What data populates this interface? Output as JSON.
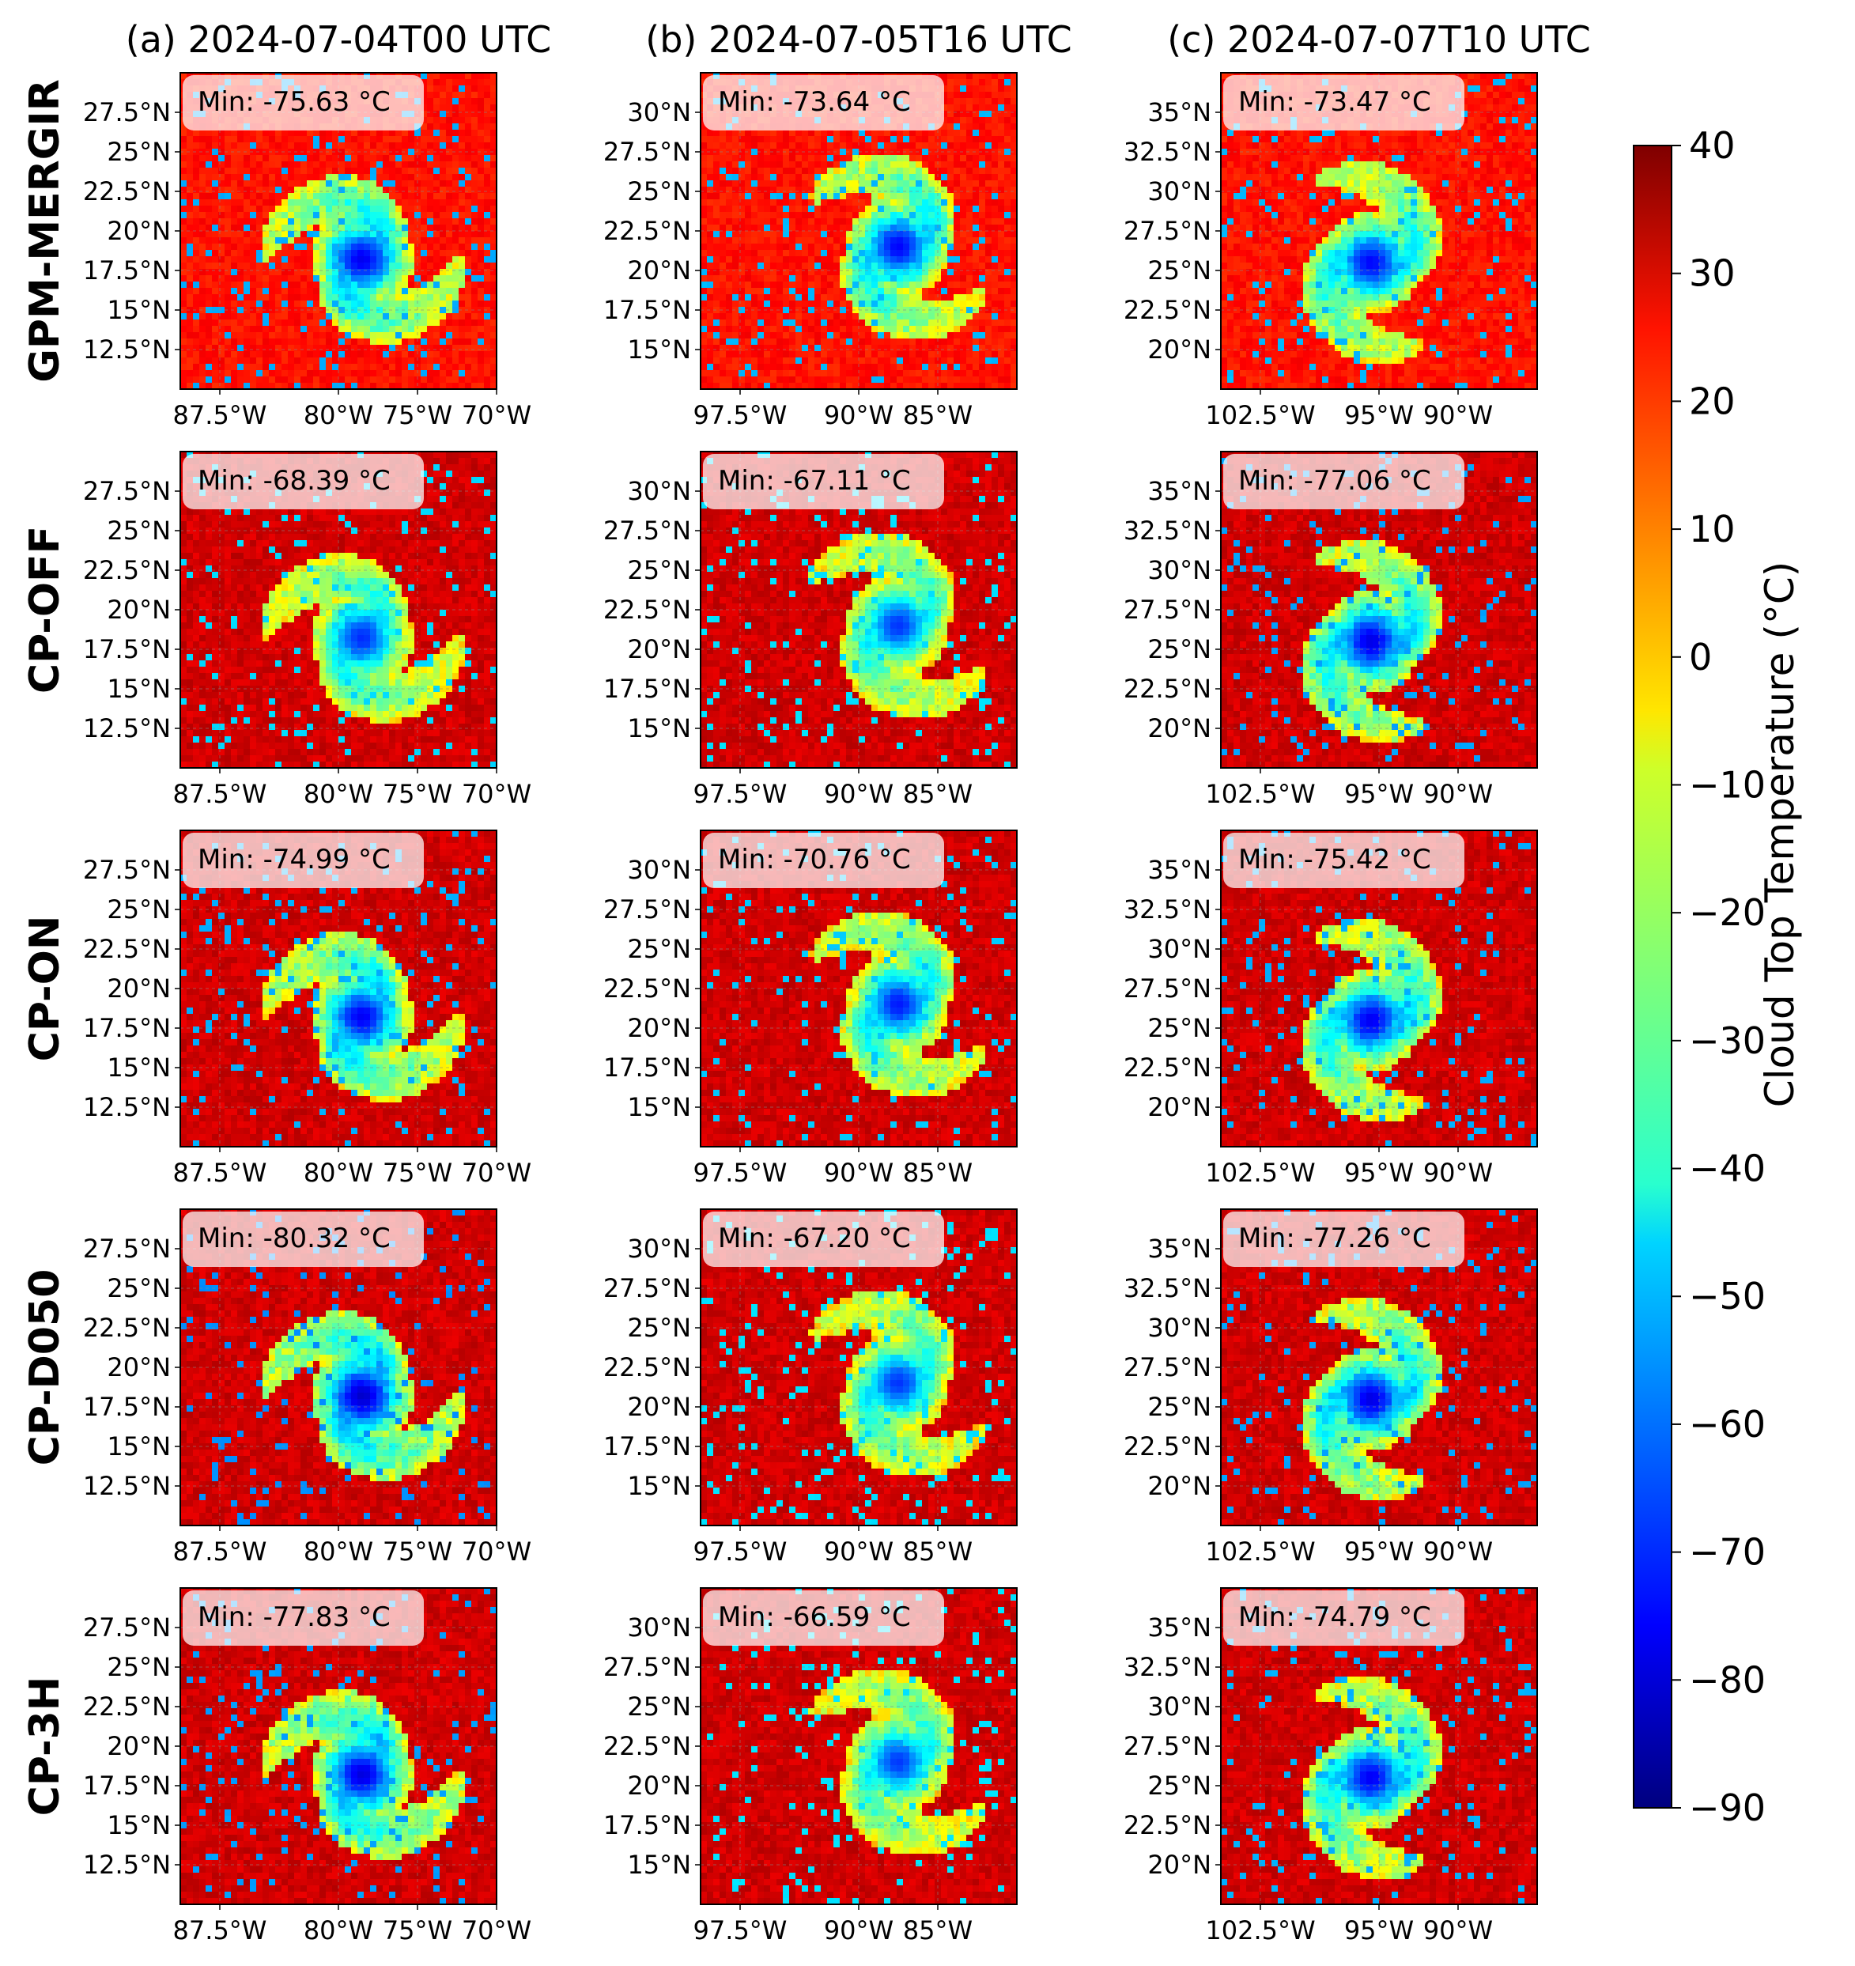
{
  "figure": {
    "columns": [
      {
        "title": "(a) 2024-07-04T00 UTC",
        "lat_ticks": [
          "27.5°N",
          "25°N",
          "22.5°N",
          "20°N",
          "17.5°N",
          "15°N",
          "12.5°N"
        ],
        "lat_values": [
          27.5,
          25,
          22.5,
          20,
          17.5,
          15,
          12.5
        ],
        "lat_range": [
          10,
          30
        ],
        "lon_ticks": [
          "87.5°W",
          "80°W",
          "75°W",
          "70°W"
        ],
        "lon_values": [
          -87.5,
          -80,
          -75,
          -70
        ],
        "lon_range": [
          -90,
          -70
        ],
        "eye_center": [
          -78.5,
          18.2
        ]
      },
      {
        "title": "(b) 2024-07-05T16 UTC",
        "lat_ticks": [
          "30°N",
          "27.5°N",
          "25°N",
          "22.5°N",
          "20°N",
          "17.5°N",
          "15°N"
        ],
        "lat_values": [
          30,
          27.5,
          25,
          22.5,
          20,
          17.5,
          15
        ],
        "lat_range": [
          12.5,
          32.5
        ],
        "lon_ticks": [
          "97.5°W",
          "90°W",
          "85°W"
        ],
        "lon_values": [
          -97.5,
          -90,
          -85
        ],
        "lon_range": [
          -100,
          -80
        ],
        "eye_center": [
          -87.5,
          21.5
        ]
      },
      {
        "title": "(c) 2024-07-07T10 UTC",
        "lat_ticks": [
          "35°N",
          "32.5°N",
          "30°N",
          "27.5°N",
          "25°N",
          "22.5°N",
          "20°N"
        ],
        "lat_values": [
          35,
          32.5,
          30,
          27.5,
          25,
          22.5,
          20
        ],
        "lat_range": [
          17.5,
          37.5
        ],
        "lon_ticks": [
          "102.5°W",
          "95°W",
          "90°W"
        ],
        "lon_values": [
          -102.5,
          -95,
          -90
        ],
        "lon_range": [
          -105,
          -85
        ],
        "eye_center": [
          -95.5,
          25.5
        ]
      }
    ],
    "rows": [
      {
        "label": "GPM-MERGIR",
        "mins": [
          "Min: -75.63 °C",
          "Min: -73.64 °C",
          "Min: -73.47 °C"
        ],
        "min_values": [
          -75.63,
          -73.64,
          -73.47
        ]
      },
      {
        "label": "CP-OFF",
        "mins": [
          "Min: -68.39 °C",
          "Min: -67.11 °C",
          "Min: -77.06 °C"
        ],
        "min_values": [
          -68.39,
          -67.11,
          -77.06
        ]
      },
      {
        "label": "CP-ON",
        "mins": [
          "Min: -74.99 °C",
          "Min: -70.76 °C",
          "Min: -75.42 °C"
        ],
        "min_values": [
          -74.99,
          -70.76,
          -75.42
        ]
      },
      {
        "label": "CP-D050",
        "mins": [
          "Min: -80.32 °C",
          "Min: -67.20 °C",
          "Min: -77.26 °C"
        ],
        "min_values": [
          -80.32,
          -67.2,
          -77.26
        ]
      },
      {
        "label": "CP-3H",
        "mins": [
          "Min: -77.83 °C",
          "Min: -66.59 °C",
          "Min: -74.79 °C"
        ],
        "min_values": [
          -77.83,
          -66.59,
          -74.79
        ]
      }
    ],
    "colorbar": {
      "label": "Cloud Top Temperature (°C)",
      "ticks": [
        "40",
        "30",
        "20",
        "10",
        "0",
        "−10",
        "−20",
        "−30",
        "−40",
        "−50",
        "−60",
        "−70",
        "−80",
        "−90"
      ],
      "tick_values": [
        40,
        30,
        20,
        10,
        0,
        -10,
        -20,
        -30,
        -40,
        -50,
        -60,
        -70,
        -80,
        -90
      ],
      "range": [
        -90,
        40
      ],
      "colormap": "jet"
    }
  },
  "chart_data": {
    "type": "heatmap",
    "variable": "Cloud Top Temperature (°C)",
    "value_range": [
      -90,
      40
    ],
    "panels": [
      {
        "row": "GPM-MERGIR",
        "column": "(a) 2024-07-04T00 UTC",
        "min": -75.63
      },
      {
        "row": "GPM-MERGIR",
        "column": "(b) 2024-07-05T16 UTC",
        "min": -73.64
      },
      {
        "row": "GPM-MERGIR",
        "column": "(c) 2024-07-07T10 UTC",
        "min": -73.47
      },
      {
        "row": "CP-OFF",
        "column": "(a) 2024-07-04T00 UTC",
        "min": -68.39
      },
      {
        "row": "CP-OFF",
        "column": "(b) 2024-07-05T16 UTC",
        "min": -67.11
      },
      {
        "row": "CP-OFF",
        "column": "(c) 2024-07-07T10 UTC",
        "min": -77.06
      },
      {
        "row": "CP-ON",
        "column": "(a) 2024-07-04T00 UTC",
        "min": -74.99
      },
      {
        "row": "CP-ON",
        "column": "(b) 2024-07-05T16 UTC",
        "min": -70.76
      },
      {
        "row": "CP-ON",
        "column": "(c) 2024-07-07T10 UTC",
        "min": -75.42
      },
      {
        "row": "CP-D050",
        "column": "(a) 2024-07-04T00 UTC",
        "min": -80.32
      },
      {
        "row": "CP-D050",
        "column": "(b) 2024-07-05T16 UTC",
        "min": -67.2
      },
      {
        "row": "CP-D050",
        "column": "(c) 2024-07-07T10 UTC",
        "min": -77.26
      },
      {
        "row": "CP-3H",
        "column": "(a) 2024-07-04T00 UTC",
        "min": -77.83
      },
      {
        "row": "CP-3H",
        "column": "(b) 2024-07-05T16 UTC",
        "min": -66.59
      },
      {
        "row": "CP-3H",
        "column": "(c) 2024-07-07T10 UTC",
        "min": -74.79
      }
    ]
  }
}
